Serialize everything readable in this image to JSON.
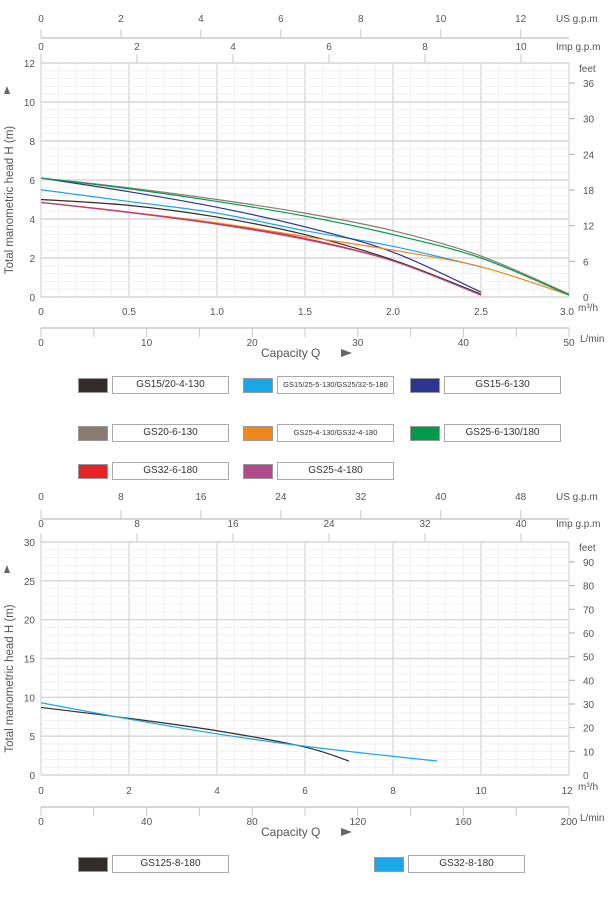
{
  "chart_data": [
    {
      "type": "line",
      "xlabel": "Capacity  Q",
      "ylabel": "Total  manometric  head  H  (m)",
      "x_unit": "m³/h",
      "xlim": [
        0,
        3.0
      ],
      "ylim": [
        0,
        12
      ],
      "x_ticks": [
        "0",
        "0.5",
        "1.0",
        "1.5",
        "2.0",
        "2.5",
        "3.0"
      ],
      "y_ticks": [
        "0",
        "2",
        "4",
        "6",
        "8",
        "10",
        "12"
      ],
      "lmin_unit": "L/min",
      "lmin_ticks": [
        "0",
        "10",
        "20",
        "30",
        "40",
        "50"
      ],
      "usgpm_unit": "US g.p.m",
      "usgpm_ticks": [
        "0",
        "2",
        "4",
        "6",
        "8",
        "10",
        "12"
      ],
      "impgpm_unit": "Imp g.p.m",
      "impgpm_ticks": [
        "0",
        "2",
        "4",
        "6",
        "8",
        "10"
      ],
      "feet_unit": "feet",
      "feet_ticks": [
        "0",
        "6",
        "12",
        "18",
        "24",
        "30",
        "36"
      ],
      "grid": true,
      "legend_placement": "bottom",
      "series": [
        {
          "name": "GS15/20-4-130",
          "color": "#332c2b",
          "x": [
            0,
            0.5,
            1.0,
            1.5,
            2.0,
            2.5
          ],
          "y": [
            5.0,
            4.7,
            4.1,
            3.2,
            1.9,
            0.15
          ]
        },
        {
          "name": "GS15/25-5-130/GS25/32-5-180",
          "color": "#1aa7e8",
          "x": [
            0,
            0.5,
            1.0,
            1.5,
            2.0,
            2.5
          ],
          "y": [
            5.5,
            4.9,
            4.3,
            3.4,
            2.6,
            1.55
          ]
        },
        {
          "name": "GS15-6-130",
          "color": "#2c3590",
          "x": [
            0,
            0.5,
            1.0,
            1.5,
            2.0,
            2.5
          ],
          "y": [
            6.1,
            5.4,
            4.6,
            3.6,
            2.3,
            0.25
          ]
        },
        {
          "name": "GS20-6-130",
          "color": "#8a7a70",
          "x": [
            0,
            0.5,
            1.0,
            1.5,
            2.0,
            2.5,
            3.0
          ],
          "y": [
            6.1,
            5.6,
            5.0,
            4.3,
            3.4,
            2.1,
            0.15
          ]
        },
        {
          "name": "GS25-4-130/GS32-4-180",
          "color": "#f0861c",
          "x": [
            0,
            0.5,
            1.0,
            1.5,
            2.0,
            2.5,
            3.0
          ],
          "y": [
            4.85,
            4.35,
            3.8,
            3.1,
            2.4,
            1.55,
            0.1
          ]
        },
        {
          "name": "GS25-6-130/180",
          "color": "#009a4a",
          "x": [
            0,
            0.5,
            1.0,
            1.5,
            2.0,
            2.5,
            3.0
          ],
          "y": [
            6.1,
            5.55,
            4.9,
            4.15,
            3.2,
            2.0,
            0.1
          ]
        },
        {
          "name": "GS32-6-180",
          "color": "#e42228",
          "x": [
            0,
            0.5,
            1.0,
            1.5,
            2.0,
            2.5
          ],
          "y": [
            4.85,
            4.35,
            3.75,
            3.0,
            1.85,
            0.1
          ]
        },
        {
          "name": "GS25-4-180",
          "color": "#b04a8a",
          "x": [
            0,
            0.5,
            1.0,
            1.5,
            2.0,
            2.5
          ],
          "y": [
            4.85,
            4.33,
            3.73,
            2.95,
            1.85,
            0.1
          ]
        }
      ]
    },
    {
      "type": "line",
      "xlabel": "Capacity  Q",
      "ylabel": "Total  manometric  head  H  (m)",
      "x_unit": "m³/h",
      "xlim": [
        0,
        12
      ],
      "ylim": [
        0,
        30
      ],
      "x_ticks": [
        "0",
        "2",
        "4",
        "6",
        "8",
        "10",
        "12"
      ],
      "y_ticks": [
        "0",
        "5",
        "10",
        "15",
        "20",
        "25",
        "30"
      ],
      "lmin_unit": "L/min",
      "lmin_ticks": [
        "0",
        "40",
        "80",
        "120",
        "160",
        "200"
      ],
      "usgpm_unit": "US g.p.m",
      "usgpm_ticks": [
        "0",
        "8",
        "16",
        "24",
        "32",
        "40",
        "48"
      ],
      "impgpm_unit": "Imp g.p.m",
      "impgpm_ticks": [
        "0",
        "8",
        "16",
        "24",
        "32",
        "40"
      ],
      "feet_unit": "feet",
      "feet_ticks": [
        "0",
        "10",
        "20",
        "30",
        "40",
        "50",
        "60",
        "70",
        "80",
        "90"
      ],
      "grid": true,
      "legend_placement": "bottom",
      "series": [
        {
          "name": "GS125-8-180",
          "color": "#332c2b",
          "x": [
            0,
            2,
            4,
            6,
            7
          ],
          "y": [
            8.7,
            7.3,
            5.7,
            3.6,
            1.8
          ]
        },
        {
          "name": "GS32-8-180",
          "color": "#1aa7e8",
          "x": [
            0,
            2,
            4,
            6,
            8,
            9
          ],
          "y": [
            9.3,
            7.2,
            5.3,
            3.7,
            2.4,
            1.8
          ]
        }
      ]
    }
  ]
}
